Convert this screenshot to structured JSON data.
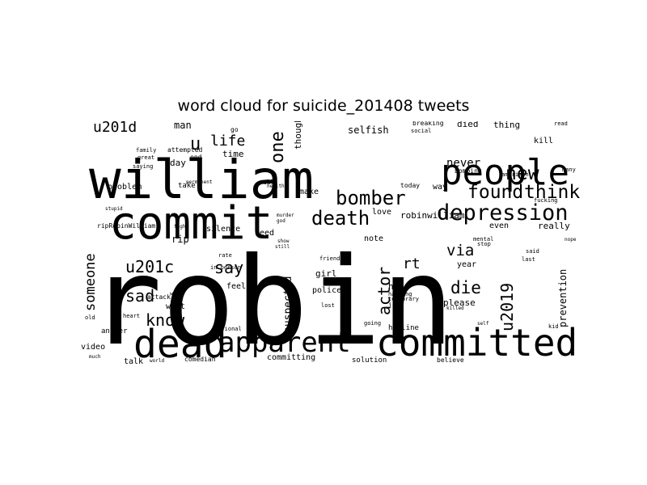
{
  "title": "word cloud for suicide_201408 tweets",
  "words": [
    {
      "text": "robin"
    },
    {
      "text": "william"
    },
    {
      "text": "commit"
    },
    {
      "text": "people"
    },
    {
      "text": "committed"
    },
    {
      "text": "dead"
    },
    {
      "text": "apparent"
    },
    {
      "text": "depression"
    },
    {
      "text": "death"
    },
    {
      "text": "bomber"
    },
    {
      "text": "found"
    },
    {
      "text": "think"
    },
    {
      "text": "new"
    },
    {
      "text": "one"
    },
    {
      "text": "life"
    },
    {
      "text": "u"
    },
    {
      "text": "u201d"
    },
    {
      "text": "u201c"
    },
    {
      "text": "say"
    },
    {
      "text": "sad"
    },
    {
      "text": "know"
    },
    {
      "text": "someone"
    },
    {
      "text": "actor"
    },
    {
      "text": "via"
    },
    {
      "text": "die"
    },
    {
      "text": "u2019"
    },
    {
      "text": "rt"
    },
    {
      "text": "never"
    },
    {
      "text": "suspected"
    },
    {
      "text": "robinwilliam"
    },
    {
      "text": "prevention"
    },
    {
      "text": "selfish"
    },
    {
      "text": "man"
    },
    {
      "text": "died"
    },
    {
      "text": "thing"
    },
    {
      "text": "time"
    },
    {
      "text": "day"
    },
    {
      "text": "thought"
    },
    {
      "text": "problem"
    },
    {
      "text": "make"
    },
    {
      "text": "way"
    },
    {
      "text": "really"
    },
    {
      "text": "kill"
    },
    {
      "text": "rip"
    },
    {
      "text": "silence"
    },
    {
      "text": "need"
    },
    {
      "text": "note"
    },
    {
      "text": "girl"
    },
    {
      "text": "help"
    },
    {
      "text": "please"
    },
    {
      "text": "year"
    },
    {
      "text": "want"
    },
    {
      "text": "feel"
    },
    {
      "text": "committing"
    },
    {
      "text": "video"
    },
    {
      "text": "talk"
    },
    {
      "text": "answer"
    },
    {
      "text": "hotline"
    },
    {
      "text": "solution"
    },
    {
      "text": "love"
    },
    {
      "text": "even"
    },
    {
      "text": "police"
    },
    {
      "text": "attack"
    },
    {
      "text": "comedian"
    },
    {
      "text": "believe"
    },
    {
      "text": "today"
    },
    {
      "text": "breaking"
    },
    {
      "text": "bombing"
    },
    {
      "text": "attempted"
    },
    {
      "text": "family"
    },
    {
      "text": "great"
    },
    {
      "text": "saying"
    },
    {
      "text": "take"
    },
    {
      "text": "end"
    },
    {
      "text": "call"
    },
    {
      "text": "go"
    },
    {
      "text": "rate"
    },
    {
      "text": "in person"
    },
    {
      "text": "joke"
    },
    {
      "text": "temporary"
    },
    {
      "text": "hanging"
    },
    {
      "text": "friend"
    },
    {
      "text": "lost"
    },
    {
      "text": "going"
    },
    {
      "text": "mental"
    },
    {
      "text": "social"
    },
    {
      "text": "heart"
    },
    {
      "text": "american"
    },
    {
      "text": "fucking"
    },
    {
      "text": "many"
    },
    {
      "text": "still"
    },
    {
      "text": "murder"
    },
    {
      "text": "stop"
    },
    {
      "text": "national"
    },
    {
      "text": "last"
    },
    {
      "text": "said"
    },
    {
      "text": "world"
    },
    {
      "text": "much"
    },
    {
      "text": "stupid"
    },
    {
      "text": "ripRobinWilliam"
    },
    {
      "text": "fight"
    },
    {
      "text": "health"
    },
    {
      "text": "god"
    },
    {
      "text": "show"
    },
    {
      "text": "watch"
    },
    {
      "text": "permanent"
    },
    {
      "text": "kid"
    },
    {
      "text": "read"
    },
    {
      "text": "old"
    },
    {
      "text": "nope"
    },
    {
      "text": "killed"
    },
    {
      "text": "self"
    }
  ]
}
